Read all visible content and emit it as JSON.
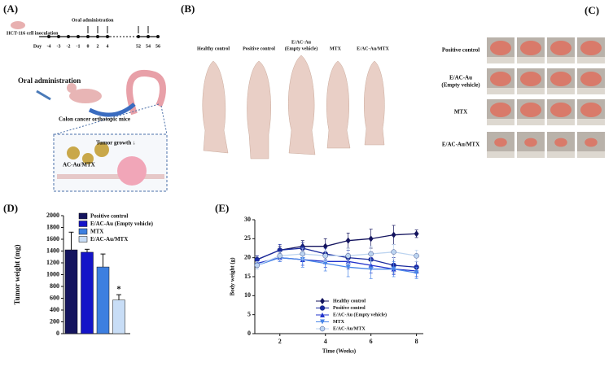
{
  "figure": {
    "panel_a": {
      "label": "(A)",
      "inoculation": "HCT-116 cell inoculation",
      "oral_top": "Oral administration",
      "days": [
        "Day",
        "-4",
        "-3",
        "-2",
        "-1",
        "0",
        "2",
        "4",
        "52",
        "54",
        "56"
      ],
      "oral": "Oral administration",
      "model": "Colon cancer orthotopic mice",
      "tumor": "Tumor growth ↓",
      "drug": "AC-Au/MTX"
    },
    "panel_b": {
      "label": "(B)",
      "groups": [
        [
          "Healthy control"
        ],
        [
          "Positive control"
        ],
        [
          "E/AC-Au",
          "(Empty vehicle)"
        ],
        [
          "MTX"
        ],
        [
          "E/AC-Au/MTX"
        ]
      ]
    },
    "panel_c": {
      "label": "(C)",
      "rows": [
        [
          "Positive control"
        ],
        [
          "E/AC-Au",
          "(Empty vehicle)"
        ],
        [
          "MTX"
        ],
        [
          "E/AC-Au/MTX"
        ]
      ]
    }
  },
  "chart_data": [
    {
      "type": "bar",
      "panel_label": "(D)",
      "y_label": "Tumor weight (mg)",
      "categories": [
        "Positive control",
        "E/AC-Au (Empty vehicle)",
        "MTX",
        "E/AC-Au/MTX"
      ],
      "values": [
        1420,
        1380,
        1130,
        570
      ],
      "errors": [
        300,
        50,
        220,
        90
      ],
      "colors": [
        "#14145e",
        "#1414c8",
        "#3d7fe0",
        "#c8ddf6"
      ],
      "significance": "*",
      "ylim": [
        0,
        2000
      ],
      "yticks": [
        0,
        200,
        400,
        600,
        800,
        1000,
        1200,
        1400,
        1600,
        1800,
        2000
      ]
    },
    {
      "type": "line",
      "panel_label": "(E)",
      "x_label": "Time (Weeks)",
      "y_label": "Body weight (g)",
      "x": [
        1,
        2,
        3,
        4,
        5,
        6,
        7,
        8
      ],
      "series": [
        {
          "name": "Healthy control",
          "color": "#14145e",
          "marker": "diamond",
          "values": [
            19.5,
            22,
            23,
            23,
            24.5,
            25,
            26,
            26.3
          ],
          "errors": [
            1,
            1,
            1.5,
            2,
            2,
            2.5,
            2.5,
            1
          ]
        },
        {
          "name": "Positive control",
          "color": "#1a2a9e",
          "marker": "circle",
          "values": [
            19.5,
            22,
            22.5,
            21,
            20,
            19.5,
            18,
            17.5
          ],
          "errors": [
            1,
            1.5,
            1.5,
            1.5,
            2,
            2,
            2,
            1.5
          ]
        },
        {
          "name": "E/AC-Au (Empty vehicle)",
          "color": "#2233cc",
          "marker": "triangle-up",
          "values": [
            18.5,
            20,
            19.5,
            19,
            19,
            18,
            17,
            16.5
          ],
          "errors": [
            1,
            1,
            1.5,
            1.5,
            2,
            2,
            1.5,
            1.5
          ]
        },
        {
          "name": "MTX",
          "color": "#4a86e8",
          "marker": "triangle-down",
          "values": [
            18,
            20,
            19.5,
            18.5,
            17.5,
            17,
            17,
            16
          ],
          "errors": [
            1,
            1,
            2,
            2,
            2.5,
            2.5,
            2,
            1.5
          ]
        },
        {
          "name": "E/AC-Au/MTX",
          "color": "#bcd4f0",
          "marker": "circle",
          "values": [
            18,
            20.5,
            21,
            20.5,
            20.5,
            21,
            21.5,
            20.5
          ],
          "errors": [
            1,
            1,
            1.5,
            1.5,
            2,
            2,
            2,
            1.5
          ]
        }
      ],
      "xlim": [
        0.9,
        8.3
      ],
      "xticks": [
        2,
        4,
        6,
        8
      ],
      "ylim": [
        0,
        30
      ],
      "yticks": [
        0,
        5,
        10,
        15,
        20,
        25,
        30
      ]
    }
  ]
}
